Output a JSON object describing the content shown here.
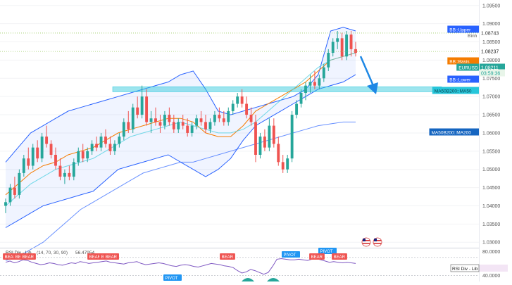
{
  "chart_data": [
    {
      "type": "candlestick",
      "symbol": "EURUSD",
      "price_axis": {
        "range": [
          1.0285,
          1.0965
        ],
        "ticks": [
          "1.09500",
          "1.09000",
          "1.08500",
          "1.08000",
          "1.07500",
          "1.07000",
          "1.06500",
          "1.06000",
          "1.05500",
          "1.05000",
          "1.04500",
          "1.04000",
          "1.03500",
          "1.03000"
        ]
      },
      "candles": [
        [
          1.04,
          1.042,
          1.038,
          1.041
        ],
        [
          1.041,
          1.046,
          1.04,
          1.045
        ],
        [
          1.045,
          1.048,
          1.042,
          1.043
        ],
        [
          1.043,
          1.05,
          1.042,
          1.049
        ],
        [
          1.049,
          1.054,
          1.048,
          1.053
        ],
        [
          1.053,
          1.056,
          1.05,
          1.051
        ],
        [
          1.051,
          1.057,
          1.05,
          1.056
        ],
        [
          1.056,
          1.058,
          1.052,
          1.053
        ],
        [
          1.053,
          1.06,
          1.052,
          1.059
        ],
        [
          1.059,
          1.062,
          1.056,
          1.057
        ],
        [
          1.057,
          1.058,
          1.053,
          1.054
        ],
        [
          1.054,
          1.056,
          1.05,
          1.051
        ],
        [
          1.051,
          1.053,
          1.047,
          1.048
        ],
        [
          1.048,
          1.05,
          1.046,
          1.049
        ],
        [
          1.049,
          1.051,
          1.047,
          1.048
        ],
        [
          1.048,
          1.053,
          1.047,
          1.052
        ],
        [
          1.052,
          1.056,
          1.051,
          1.055
        ],
        [
          1.055,
          1.057,
          1.052,
          1.053
        ],
        [
          1.053,
          1.056,
          1.052,
          1.055
        ],
        [
          1.055,
          1.058,
          1.054,
          1.057
        ],
        [
          1.057,
          1.059,
          1.055,
          1.056
        ],
        [
          1.056,
          1.06,
          1.055,
          1.059
        ],
        [
          1.059,
          1.061,
          1.056,
          1.057
        ],
        [
          1.057,
          1.059,
          1.054,
          1.055
        ],
        [
          1.055,
          1.058,
          1.054,
          1.057
        ],
        [
          1.057,
          1.06,
          1.056,
          1.059
        ],
        [
          1.059,
          1.064,
          1.058,
          1.063
        ],
        [
          1.063,
          1.066,
          1.06,
          1.061
        ],
        [
          1.061,
          1.068,
          1.06,
          1.067
        ],
        [
          1.067,
          1.07,
          1.064,
          1.065
        ],
        [
          1.065,
          1.073,
          1.064,
          1.07
        ],
        [
          1.07,
          1.072,
          1.062,
          1.063
        ],
        [
          1.063,
          1.066,
          1.06,
          1.064
        ],
        [
          1.064,
          1.067,
          1.062,
          1.063
        ],
        [
          1.063,
          1.065,
          1.06,
          1.062
        ],
        [
          1.062,
          1.066,
          1.061,
          1.065
        ],
        [
          1.065,
          1.067,
          1.062,
          1.063
        ],
        [
          1.063,
          1.065,
          1.06,
          1.061
        ],
        [
          1.061,
          1.064,
          1.06,
          1.063
        ],
        [
          1.063,
          1.065,
          1.061,
          1.062
        ],
        [
          1.062,
          1.064,
          1.059,
          1.06
        ],
        [
          1.06,
          1.063,
          1.059,
          1.062
        ],
        [
          1.062,
          1.065,
          1.061,
          1.064
        ],
        [
          1.064,
          1.066,
          1.062,
          1.063
        ],
        [
          1.063,
          1.065,
          1.06,
          1.061
        ],
        [
          1.061,
          1.064,
          1.06,
          1.063
        ],
        [
          1.063,
          1.066,
          1.062,
          1.065
        ],
        [
          1.065,
          1.067,
          1.063,
          1.064
        ],
        [
          1.064,
          1.066,
          1.062,
          1.063
        ],
        [
          1.063,
          1.067,
          1.062,
          1.066
        ],
        [
          1.066,
          1.069,
          1.065,
          1.068
        ],
        [
          1.068,
          1.071,
          1.067,
          1.07
        ],
        [
          1.07,
          1.072,
          1.067,
          1.068
        ],
        [
          1.068,
          1.07,
          1.064,
          1.065
        ],
        [
          1.065,
          1.067,
          1.062,
          1.063
        ],
        [
          1.063,
          1.065,
          1.052,
          1.054
        ],
        [
          1.054,
          1.06,
          1.053,
          1.059
        ],
        [
          1.059,
          1.061,
          1.055,
          1.056
        ],
        [
          1.056,
          1.064,
          1.055,
          1.062
        ],
        [
          1.062,
          1.064,
          1.056,
          1.057
        ],
        [
          1.057,
          1.059,
          1.051,
          1.052
        ],
        [
          1.052,
          1.054,
          1.049,
          1.05
        ],
        [
          1.05,
          1.054,
          1.049,
          1.053
        ],
        [
          1.053,
          1.066,
          1.052,
          1.065
        ],
        [
          1.065,
          1.069,
          1.064,
          1.068
        ],
        [
          1.068,
          1.072,
          1.067,
          1.071
        ],
        [
          1.071,
          1.074,
          1.069,
          1.073
        ],
        [
          1.073,
          1.076,
          1.071,
          1.074
        ],
        [
          1.074,
          1.077,
          1.072,
          1.073
        ],
        [
          1.073,
          1.076,
          1.072,
          1.075
        ],
        [
          1.075,
          1.079,
          1.074,
          1.078
        ],
        [
          1.078,
          1.083,
          1.077,
          1.082
        ],
        [
          1.082,
          1.086,
          1.081,
          1.085
        ],
        [
          1.085,
          1.088,
          1.083,
          1.086
        ],
        [
          1.086,
          1.0875,
          1.08,
          1.081
        ],
        [
          1.081,
          1.088,
          1.08,
          1.087
        ],
        [
          1.087,
          1.088,
          1.081,
          1.083
        ],
        [
          1.083,
          1.085,
          1.081,
          1.082
        ]
      ],
      "bollinger": {
        "upper": [
          1.052,
          1.056,
          1.06,
          1.062,
          1.064,
          1.066,
          1.067,
          1.068,
          1.069,
          1.07,
          1.071,
          1.072,
          1.073,
          1.074,
          1.076,
          1.077,
          1.072,
          1.066,
          1.065,
          1.066,
          1.067,
          1.068,
          1.069,
          1.07,
          1.072,
          1.076,
          1.088,
          1.089,
          1.088
        ],
        "basis": [
          1.043,
          1.046,
          1.049,
          1.051,
          1.052,
          1.054,
          1.055,
          1.056,
          1.058,
          1.06,
          1.061,
          1.062,
          1.063,
          1.064,
          1.064,
          1.063,
          1.06,
          1.059,
          1.059,
          1.062,
          1.066,
          1.068,
          1.07,
          1.072,
          1.074,
          1.077,
          1.08,
          1.081,
          1.082
        ],
        "lower": [
          1.034,
          1.036,
          1.038,
          1.04,
          1.041,
          1.042,
          1.043,
          1.044,
          1.047,
          1.05,
          1.051,
          1.052,
          1.053,
          1.054,
          1.052,
          1.05,
          1.048,
          1.05,
          1.053,
          1.058,
          1.062,
          1.064,
          1.066,
          1.068,
          1.07,
          1.072,
          1.073,
          1.074,
          1.076
        ]
      },
      "ma50": [
        1.04,
        1.043,
        1.046,
        1.048,
        1.05,
        1.051,
        1.052,
        1.053,
        1.055,
        1.057,
        1.059,
        1.06,
        1.061,
        1.062,
        1.063,
        1.062,
        1.061,
        1.06,
        1.06,
        1.061,
        1.063,
        1.066,
        1.069,
        1.072,
        1.075,
        1.078,
        1.08,
        1.081,
        1.082
      ],
      "ma200": [
        1.025,
        1.026,
        1.028,
        1.03,
        1.033,
        1.036,
        1.039,
        1.041,
        1.043,
        1.045,
        1.047,
        1.049,
        1.05,
        1.051,
        1.052,
        1.052,
        1.053,
        1.054,
        1.055,
        1.056,
        1.057,
        1.058,
        1.059,
        1.06,
        1.061,
        1.062,
        1.0625,
        1.063,
        1.063
      ],
      "zone": [
        1.0713,
        1.0727
      ],
      "reference_lines": [
        1.08743,
        1.08237
      ],
      "labels": {
        "bb_upper": "BB::Upper",
        "binh": "Bình",
        "upper_value": "1.08743",
        "last_value": "1.08237",
        "bb_basis": "BB::Basis",
        "symbol": "EURUSD",
        "current_price": "1.08211",
        "countdown": "03:59:36",
        "bb_lower": "BB::Lower",
        "ma50_ma50": "MA50B200::MA50",
        "ma50_ma200": "MA50B200::MA200"
      }
    },
    {
      "type": "line",
      "title": "RSI Div - Lib",
      "params": "(14, 70, 30, 90)",
      "value": "56.47954",
      "axis_ticks": [
        "80.0000",
        "40.0000"
      ],
      "pane_label": "RSI Div - Lib",
      "rsi_range": [
        30,
        85
      ],
      "values": [
        62,
        64,
        61,
        63,
        66,
        65,
        62,
        60,
        58,
        59,
        61,
        60,
        58,
        57,
        59,
        61,
        60,
        63,
        62,
        60,
        61,
        62,
        63,
        64,
        62,
        61,
        60,
        59,
        61,
        62,
        63,
        60,
        58,
        59,
        60,
        61,
        60,
        58,
        56,
        55,
        57,
        58,
        57,
        55,
        54,
        56,
        58,
        60,
        59,
        58,
        56,
        55,
        53,
        48,
        44,
        46,
        50,
        48,
        45,
        42,
        45,
        55,
        67,
        68,
        67,
        66,
        66,
        67,
        66,
        65,
        67,
        68,
        66,
        64,
        62,
        63,
        62,
        61,
        62,
        61,
        60
      ],
      "markers": [
        {
          "text": "BEAR"
        },
        {
          "text": "BEA"
        },
        {
          "text": "BEAR"
        },
        {
          "text": "BEAR"
        },
        {
          "text": "BEA"
        },
        {
          "text": "BEAR"
        },
        {
          "text": "PIVOT"
        },
        {
          "text": "BEAR"
        },
        {
          "text": "PIVOT"
        },
        {
          "text": "PIVOT"
        },
        {
          "text": "BEAR"
        },
        {
          "text": "BEAR"
        },
        {
          "text": "BEAR"
        }
      ]
    }
  ]
}
